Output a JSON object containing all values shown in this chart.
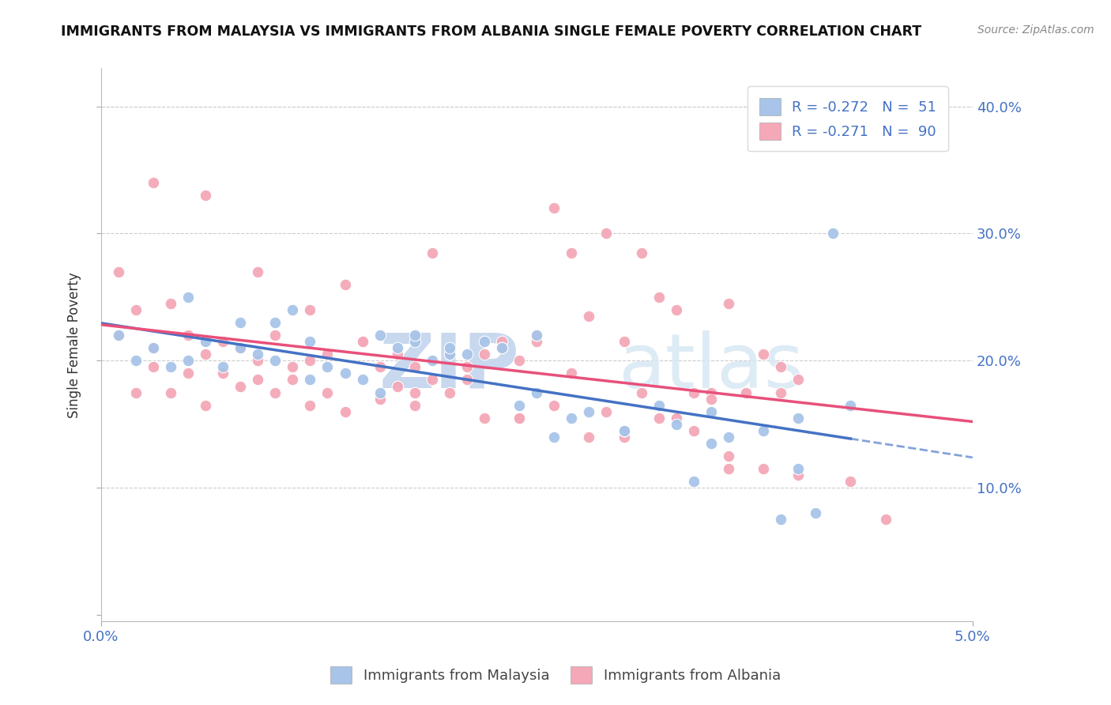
{
  "title": "IMMIGRANTS FROM MALAYSIA VS IMMIGRANTS FROM ALBANIA SINGLE FEMALE POVERTY CORRELATION CHART",
  "source": "Source: ZipAtlas.com",
  "ylabel": "Single Female Poverty",
  "xlim": [
    0.0,
    0.05
  ],
  "ylim": [
    -0.005,
    0.43
  ],
  "malaysia_color": "#a8c4e8",
  "albania_color": "#f4a8b8",
  "trend_malaysia_color": "#4472c4",
  "trend_albania_color": "#e8507a",
  "malaysia_x": [
    0.001,
    0.002,
    0.003,
    0.004,
    0.005,
    0.006,
    0.007,
    0.008,
    0.009,
    0.01,
    0.011,
    0.012,
    0.013,
    0.014,
    0.015,
    0.016,
    0.017,
    0.018,
    0.019,
    0.02,
    0.021,
    0.022,
    0.023,
    0.024,
    0.025,
    0.026,
    0.027,
    0.028,
    0.03,
    0.032,
    0.033,
    0.034,
    0.035,
    0.036,
    0.038,
    0.039,
    0.04,
    0.041,
    0.042,
    0.043,
    0.005,
    0.008,
    0.01,
    0.012,
    0.016,
    0.018,
    0.02,
    0.025,
    0.03,
    0.035,
    0.04
  ],
  "malaysia_y": [
    0.22,
    0.2,
    0.21,
    0.195,
    0.2,
    0.215,
    0.195,
    0.21,
    0.205,
    0.2,
    0.24,
    0.185,
    0.195,
    0.19,
    0.185,
    0.175,
    0.21,
    0.215,
    0.2,
    0.205,
    0.205,
    0.215,
    0.21,
    0.165,
    0.22,
    0.14,
    0.155,
    0.16,
    0.145,
    0.165,
    0.15,
    0.105,
    0.16,
    0.14,
    0.145,
    0.075,
    0.155,
    0.08,
    0.3,
    0.165,
    0.25,
    0.23,
    0.23,
    0.215,
    0.22,
    0.22,
    0.21,
    0.175,
    0.145,
    0.135,
    0.115
  ],
  "albania_x": [
    0.001,
    0.002,
    0.003,
    0.004,
    0.005,
    0.006,
    0.007,
    0.008,
    0.009,
    0.01,
    0.011,
    0.012,
    0.013,
    0.014,
    0.015,
    0.016,
    0.017,
    0.018,
    0.019,
    0.02,
    0.021,
    0.022,
    0.023,
    0.024,
    0.025,
    0.026,
    0.027,
    0.028,
    0.029,
    0.03,
    0.031,
    0.032,
    0.033,
    0.034,
    0.035,
    0.036,
    0.037,
    0.038,
    0.039,
    0.04,
    0.001,
    0.003,
    0.005,
    0.007,
    0.009,
    0.011,
    0.013,
    0.015,
    0.017,
    0.019,
    0.021,
    0.023,
    0.025,
    0.027,
    0.029,
    0.031,
    0.033,
    0.035,
    0.037,
    0.039,
    0.002,
    0.004,
    0.006,
    0.008,
    0.01,
    0.012,
    0.014,
    0.016,
    0.018,
    0.02,
    0.022,
    0.024,
    0.026,
    0.028,
    0.03,
    0.032,
    0.034,
    0.036,
    0.038,
    0.04,
    0.003,
    0.006,
    0.009,
    0.012,
    0.018,
    0.024,
    0.03,
    0.036,
    0.043,
    0.045
  ],
  "albania_y": [
    0.22,
    0.24,
    0.195,
    0.245,
    0.22,
    0.205,
    0.215,
    0.21,
    0.2,
    0.22,
    0.195,
    0.2,
    0.205,
    0.26,
    0.215,
    0.195,
    0.205,
    0.195,
    0.285,
    0.205,
    0.195,
    0.205,
    0.215,
    0.2,
    0.215,
    0.32,
    0.285,
    0.235,
    0.3,
    0.215,
    0.285,
    0.25,
    0.24,
    0.175,
    0.175,
    0.245,
    0.175,
    0.205,
    0.195,
    0.185,
    0.27,
    0.21,
    0.19,
    0.19,
    0.185,
    0.185,
    0.175,
    0.215,
    0.18,
    0.185,
    0.185,
    0.21,
    0.22,
    0.19,
    0.16,
    0.175,
    0.155,
    0.17,
    0.175,
    0.175,
    0.175,
    0.175,
    0.165,
    0.18,
    0.175,
    0.165,
    0.16,
    0.17,
    0.165,
    0.175,
    0.155,
    0.155,
    0.165,
    0.14,
    0.14,
    0.155,
    0.145,
    0.125,
    0.115,
    0.11,
    0.34,
    0.33,
    0.27,
    0.24,
    0.175,
    0.155,
    0.145,
    0.115,
    0.105,
    0.075
  ],
  "y_ticks": [
    0.0,
    0.1,
    0.2,
    0.3,
    0.4
  ],
  "y_tick_labels_right": [
    "",
    "10.0%",
    "20.0%",
    "30.0%",
    "40.0%"
  ],
  "x_ticks": [
    0.0,
    0.05
  ],
  "x_tick_labels": [
    "0.0%",
    "5.0%"
  ],
  "legend1_label1": "R = -0.272   N =  51",
  "legend1_label2": "R = -0.271   N =  90",
  "legend2_label1": "Immigrants from Malaysia",
  "legend2_label2": "Immigrants from Albania",
  "tick_color": "#4472c4",
  "grid_color": "#cccccc",
  "title_fontsize": 12.5,
  "source_fontsize": 10,
  "axis_label_fontsize": 12,
  "tick_fontsize": 13,
  "legend_fontsize": 13
}
